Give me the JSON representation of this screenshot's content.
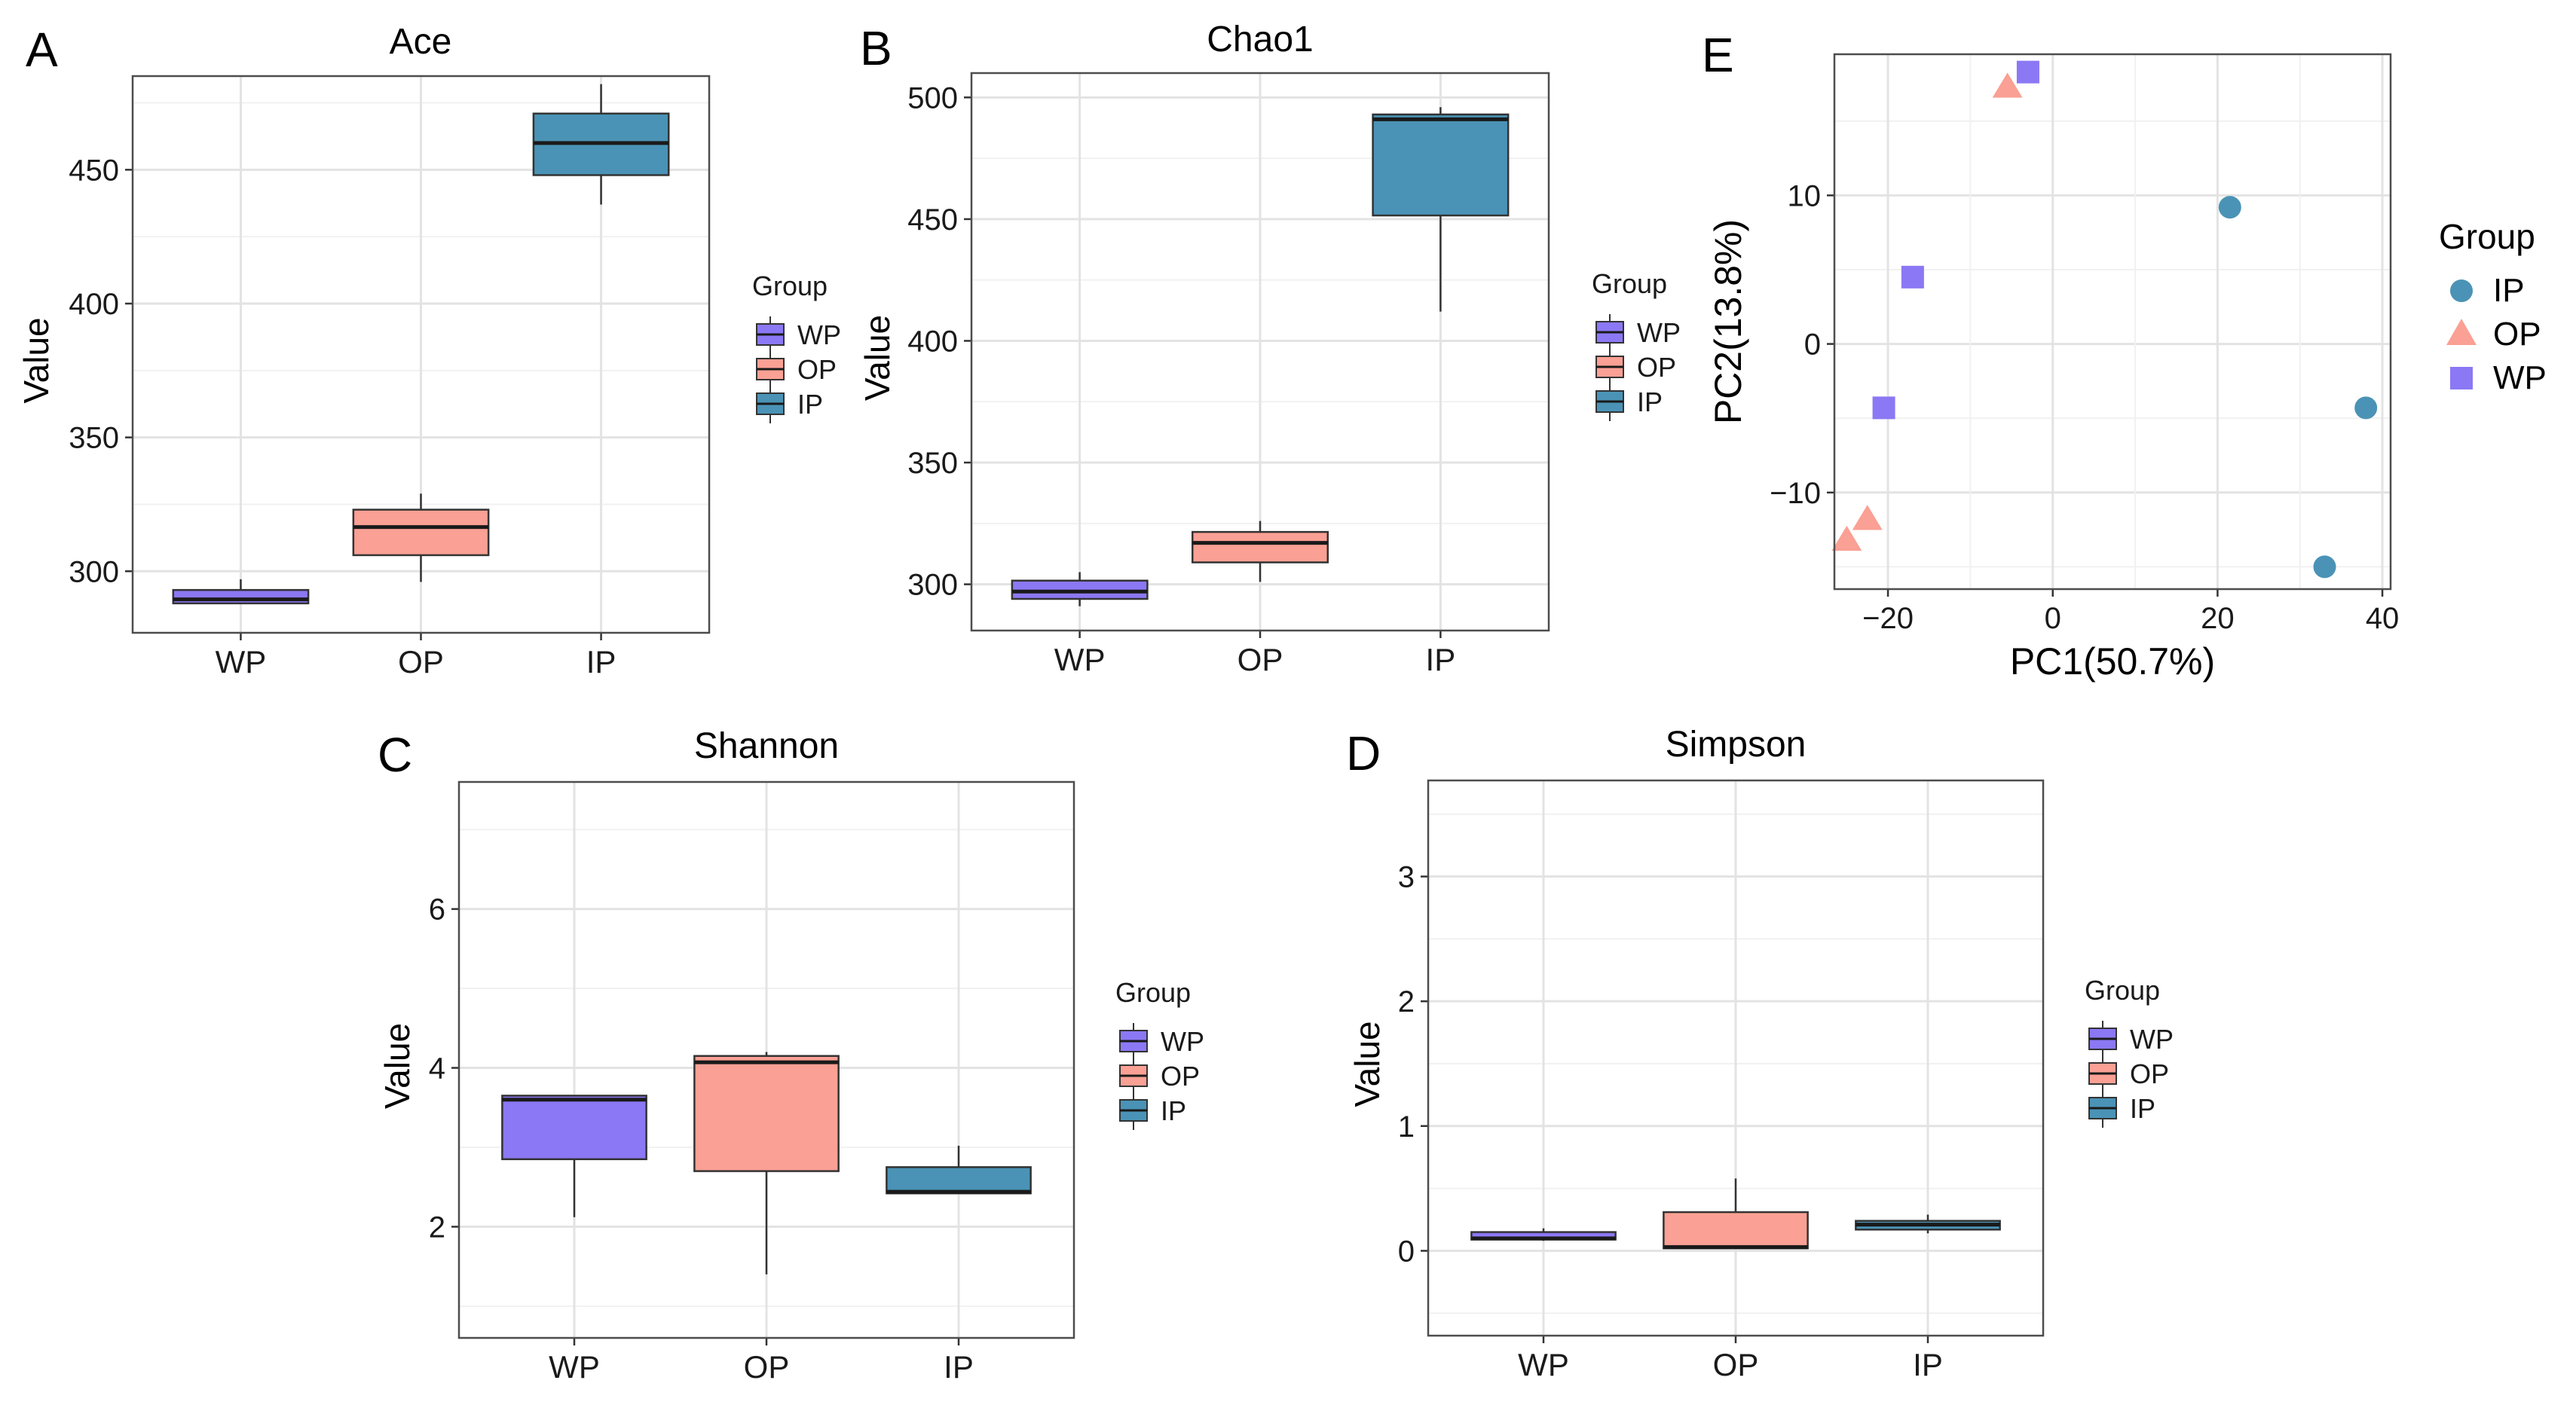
{
  "colors": {
    "WP": "#8B78F4",
    "OP": "#FAA094",
    "IP": "#4A93B6",
    "grid": "#E6E6E6",
    "border": "#4D4D4D"
  },
  "chart_data": [
    {
      "id": "A",
      "type": "box",
      "panel_label": "A",
      "title": "Ace",
      "xlabel": "",
      "ylabel": "Value",
      "ylim": [
        277,
        485
      ],
      "yticks": [
        300,
        350,
        400,
        450
      ],
      "ytick_labels": [
        "300",
        "350",
        "400",
        "450"
      ],
      "categories": [
        "WP",
        "OP",
        "IP"
      ],
      "boxes": [
        {
          "group": "WP",
          "min": 288,
          "q1": 288,
          "median": 289.5,
          "q3": 293,
          "max": 297
        },
        {
          "group": "OP",
          "min": 296,
          "q1": 306,
          "median": 316.5,
          "q3": 323,
          "max": 329
        },
        {
          "group": "IP",
          "min": 437,
          "q1": 448,
          "median": 460,
          "q3": 471,
          "max": 482
        }
      ],
      "legend": {
        "title": "Group",
        "entries": [
          "WP",
          "OP",
          "IP"
        ]
      }
    },
    {
      "id": "B",
      "type": "box",
      "panel_label": "B",
      "title": "Chao1",
      "xlabel": "",
      "ylabel": "Value",
      "ylim": [
        281,
        510
      ],
      "yticks": [
        300,
        350,
        400,
        450,
        500
      ],
      "ytick_labels": [
        "300",
        "350",
        "400",
        "450",
        "500"
      ],
      "categories": [
        "WP",
        "OP",
        "IP"
      ],
      "boxes": [
        {
          "group": "WP",
          "min": 291,
          "q1": 294,
          "median": 297,
          "q3": 301.5,
          "max": 305
        },
        {
          "group": "OP",
          "min": 301,
          "q1": 309,
          "median": 317,
          "q3": 321.5,
          "max": 326
        },
        {
          "group": "IP",
          "min": 412,
          "q1": 451.5,
          "median": 491,
          "q3": 493,
          "max": 496
        }
      ],
      "legend": {
        "title": "Group",
        "entries": [
          "WP",
          "OP",
          "IP"
        ]
      }
    },
    {
      "id": "C",
      "type": "box",
      "panel_label": "C",
      "title": "Shannon",
      "xlabel": "",
      "ylabel": "Value",
      "ylim": [
        0.6,
        7.6
      ],
      "yticks": [
        2,
        4,
        6
      ],
      "ytick_labels": [
        "2",
        "4",
        "6"
      ],
      "categories": [
        "WP",
        "OP",
        "IP"
      ],
      "boxes": [
        {
          "group": "WP",
          "min": 2.12,
          "q1": 2.85,
          "median": 3.6,
          "q3": 3.65,
          "max": 3.65
        },
        {
          "group": "OP",
          "min": 1.4,
          "q1": 2.7,
          "median": 4.07,
          "q3": 4.15,
          "max": 4.2
        },
        {
          "group": "IP",
          "min": 2.42,
          "q1": 2.42,
          "median": 2.44,
          "q3": 2.75,
          "max": 3.02
        }
      ],
      "legend": {
        "title": "Group",
        "entries": [
          "WP",
          "OP",
          "IP"
        ]
      }
    },
    {
      "id": "D",
      "type": "box",
      "panel_label": "D",
      "title": "Simpson",
      "xlabel": "",
      "ylabel": "Value",
      "ylim": [
        -0.68,
        3.77
      ],
      "yticks": [
        0,
        1,
        2,
        3
      ],
      "ytick_labels": [
        "0",
        "1",
        "2",
        "3"
      ],
      "categories": [
        "WP",
        "OP",
        "IP"
      ],
      "boxes": [
        {
          "group": "WP",
          "min": 0.08,
          "q1": 0.09,
          "median": 0.1,
          "q3": 0.15,
          "max": 0.18
        },
        {
          "group": "OP",
          "min": 0.02,
          "q1": 0.02,
          "median": 0.03,
          "q3": 0.31,
          "max": 0.58
        },
        {
          "group": "IP",
          "min": 0.14,
          "q1": 0.17,
          "median": 0.21,
          "q3": 0.24,
          "max": 0.29
        }
      ],
      "legend": {
        "title": "Group",
        "entries": [
          "WP",
          "OP",
          "IP"
        ]
      }
    },
    {
      "id": "E",
      "type": "scatter",
      "panel_label": "E",
      "title": "",
      "xlabel": "PC1(50.7%)",
      "ylabel": "PC2(13.8%)",
      "xlim": [
        -26.5,
        41
      ],
      "ylim": [
        -16.5,
        19.5
      ],
      "xticks": [
        -20,
        0,
        20,
        40
      ],
      "xtick_labels": [
        "−20",
        "0",
        "20",
        "40"
      ],
      "yticks": [
        -10,
        0,
        10
      ],
      "ytick_labels": [
        "−10",
        "0",
        "10"
      ],
      "series": [
        {
          "name": "IP",
          "marker": "circle",
          "points": [
            [
              21.5,
              9.2
            ],
            [
              38,
              -4.3
            ],
            [
              33,
              -15
            ]
          ]
        },
        {
          "name": "OP",
          "marker": "triangle",
          "points": [
            [
              -5.5,
              17.3
            ],
            [
              -22.5,
              -11.8
            ],
            [
              -25,
              -13.2
            ]
          ]
        },
        {
          "name": "WP",
          "marker": "square",
          "points": [
            [
              -3,
              18.3
            ],
            [
              -17,
              4.5
            ],
            [
              -20.5,
              -4.3
            ]
          ]
        }
      ],
      "legend": {
        "title": "Group",
        "entries": [
          "IP",
          "OP",
          "WP"
        ]
      }
    }
  ]
}
